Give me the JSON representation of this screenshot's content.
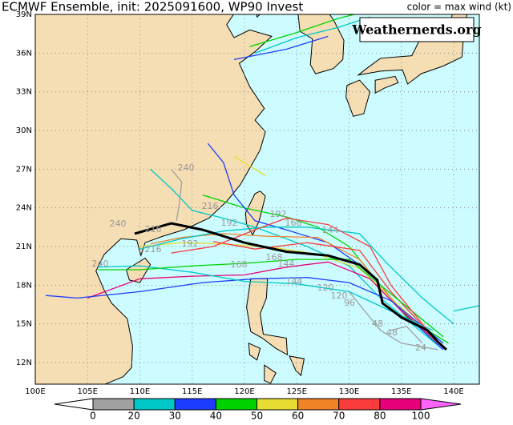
{
  "header": {
    "title": "ECMWF Ensemble, init: 2025091600, WP90 Invest",
    "legend_note": "color = max wind (kt)"
  },
  "watermark": "Weathernerds.org",
  "axes": {
    "lon_labels": [
      "100E",
      "105E",
      "110E",
      "115E",
      "120E",
      "125E",
      "130E",
      "135E",
      "140E"
    ],
    "lat_labels": [
      "39N",
      "36N",
      "33N",
      "30N",
      "27N",
      "24N",
      "21N",
      "18N",
      "15N",
      "12N"
    ]
  },
  "colorbar": {
    "labels": [
      0,
      20,
      30,
      40,
      50,
      60,
      70,
      80,
      100
    ],
    "colors": [
      "#ffffff",
      "#a0a0a0",
      "#00c8c8",
      "#1e3cff",
      "#00d200",
      "#e6dc32",
      "#f08228",
      "#fa3c3c",
      "#e6007a",
      "#ff64ff"
    ]
  },
  "track_labels": [
    "240",
    "240",
    "240",
    "216",
    "216",
    "216",
    "192",
    "192",
    "192",
    "168",
    "168",
    "168",
    "144",
    "144",
    "144",
    "120",
    "120",
    "96",
    "48",
    "48",
    "24"
  ]
}
